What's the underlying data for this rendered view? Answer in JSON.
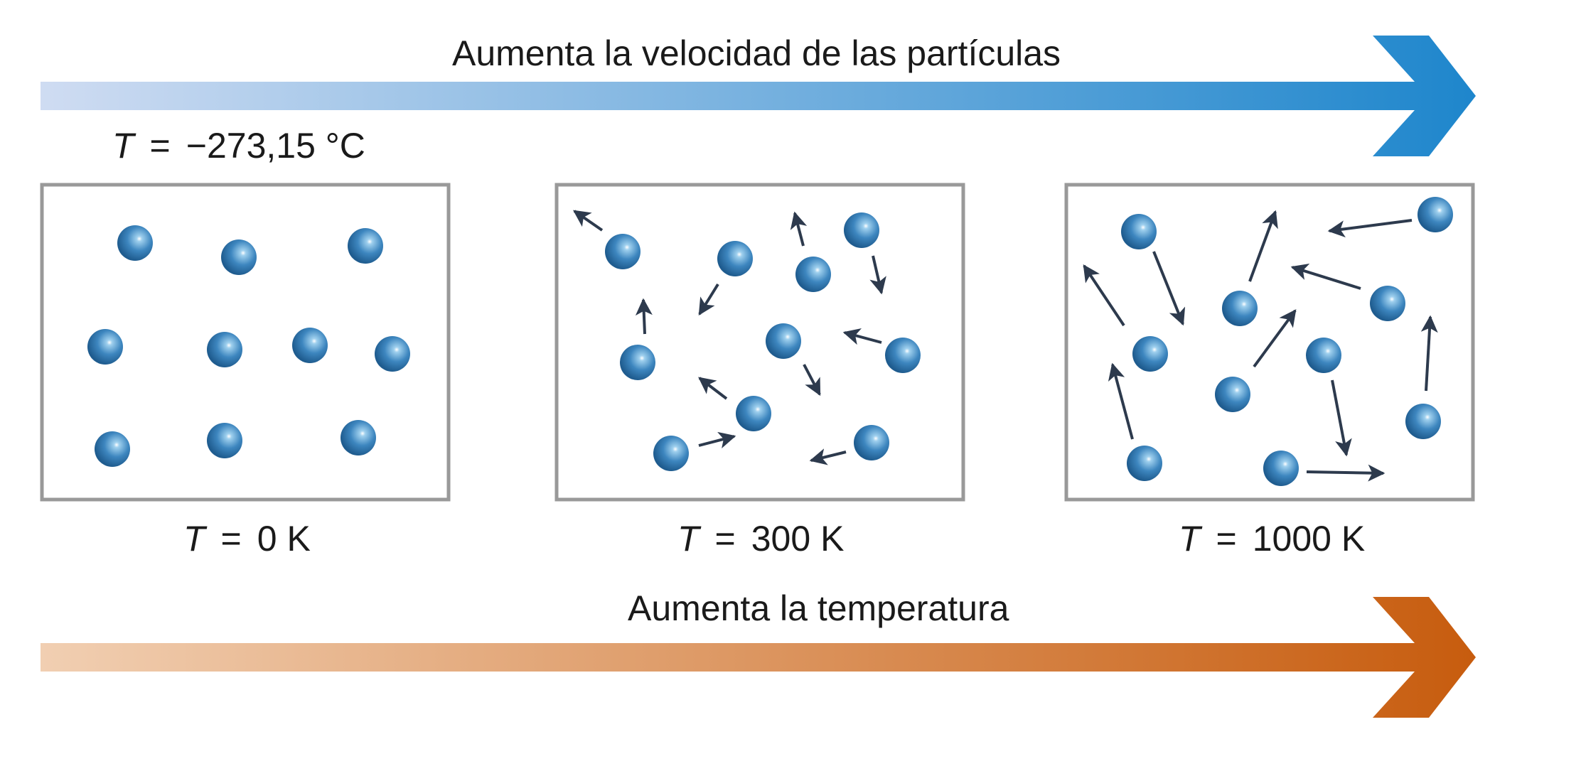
{
  "top_arrow": {
    "label": "Aumenta la velocidad de las partículas",
    "color_start": "#cfdcf2",
    "color_end": "#1e86cc"
  },
  "bottom_arrow": {
    "label": "Aumenta la temperatura",
    "color_start": "#f1cfb2",
    "color_end": "#c75c0e"
  },
  "celsius_note": {
    "symbol": "T",
    "equals": "=",
    "value": "−273,15 °C"
  },
  "panels": [
    {
      "symbol": "T",
      "equals": "=",
      "value": "0 K"
    },
    {
      "symbol": "T",
      "equals": "=",
      "value": "300 K"
    },
    {
      "symbol": "T",
      "equals": "=",
      "value": "1000 K"
    }
  ],
  "colors": {
    "panel_border": "#999999",
    "particle": "#3d86bf",
    "particle_dark": "#1f5c8f",
    "particle_light": "#9fd0ee",
    "velocity_arrow": "#2d3a4d"
  }
}
